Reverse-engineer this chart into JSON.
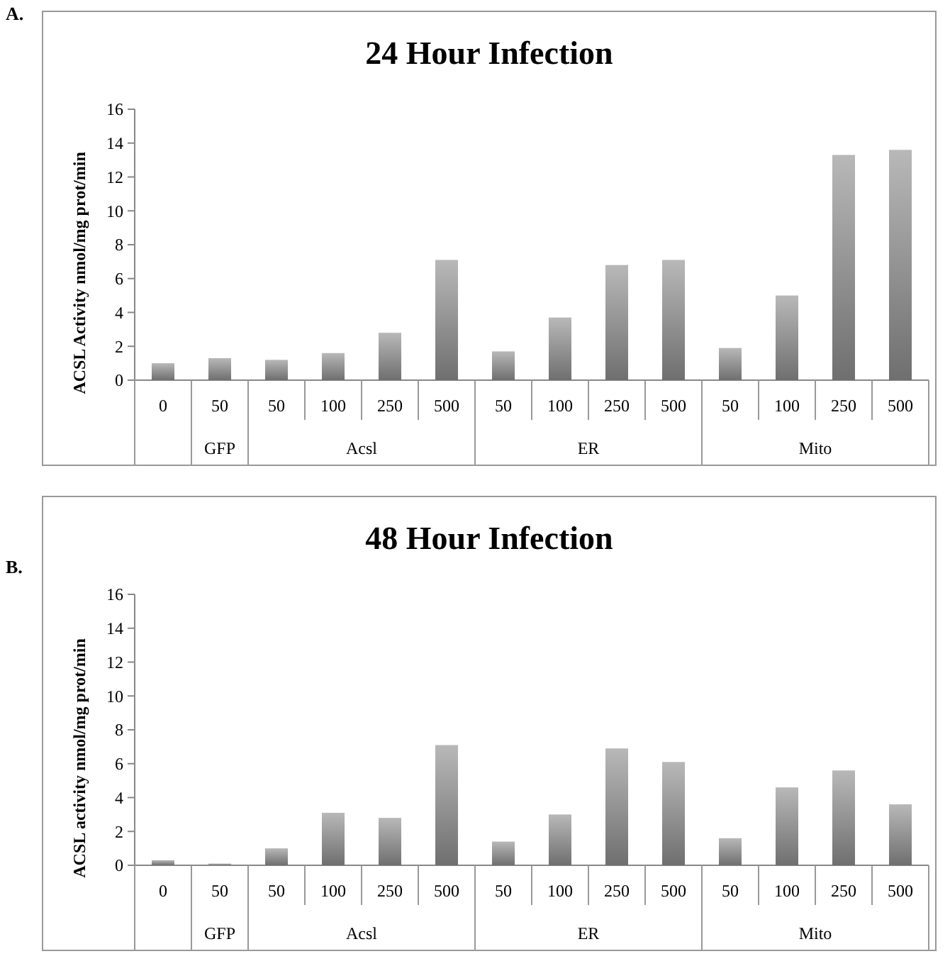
{
  "chart_data": [
    {
      "type": "bar",
      "title": "24 Hour Infection",
      "ylabel": "ACSL Activity nmol/mg prot/min",
      "categories": [
        "0",
        "50",
        "50",
        "100",
        "250",
        "500",
        "50",
        "100",
        "250",
        "500",
        "50",
        "100",
        "250",
        "500"
      ],
      "values": [
        1.0,
        1.3,
        1.2,
        1.6,
        2.8,
        7.1,
        1.7,
        3.7,
        6.8,
        7.1,
        1.9,
        5.0,
        13.3,
        13.6
      ],
      "color": "#8a8a8a",
      "ylim": [
        0,
        16
      ],
      "yticks": [
        0,
        2,
        4,
        6,
        8,
        10,
        12,
        14,
        16
      ],
      "grid": false,
      "annotations": [
        "A.",
        "GFP",
        "Acsl",
        "ER",
        "Mito"
      ]
    },
    {
      "type": "bar",
      "title": "48 Hour Infection",
      "ylabel": "ACSL activity nmol/mg prot/min",
      "categories": [
        "0",
        "50",
        "50",
        "100",
        "250",
        "500",
        "50",
        "100",
        "250",
        "500",
        "50",
        "100",
        "250",
        "500"
      ],
      "values": [
        0.3,
        0.1,
        1.0,
        3.1,
        2.8,
        7.1,
        1.4,
        3.0,
        6.9,
        6.1,
        1.6,
        4.6,
        5.6,
        3.6
      ],
      "color": "#8a8a8a",
      "ylim": [
        0,
        16
      ],
      "yticks": [
        0,
        2,
        4,
        6,
        8,
        10,
        12,
        14,
        16
      ],
      "grid": false,
      "annotations": [
        "B.",
        "GFP",
        "Acsl",
        "ER",
        "Mito"
      ]
    }
  ]
}
